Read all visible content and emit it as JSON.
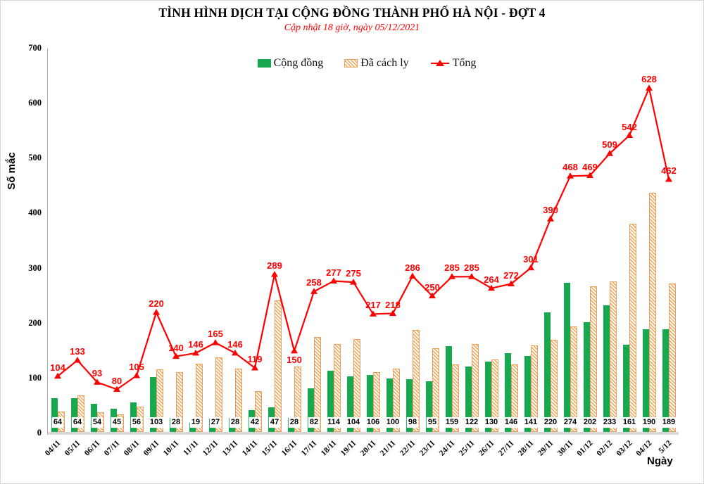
{
  "title": "TÌNH HÌNH DỊCH TẠI CỘNG ĐỒNG THÀNH PHỐ HÀ NỘI - ĐỢT 4",
  "subtitle": "Cập nhật 18 giờ, ngày 05/12/2021",
  "legend": {
    "community": "Cộng đồng",
    "quarantined": "Đã cách ly",
    "total": "Tổng"
  },
  "axis": {
    "y_label": "Số mắc",
    "x_label": "Ngày"
  },
  "colors": {
    "community": "#18a850",
    "quarantined_stripe": "#f0a256",
    "quarantined_border": "#eda156",
    "total": "#ff0000",
    "subtitle": "#ff0000",
    "axis_strip": "#d9d9d9"
  },
  "chart_data": {
    "type": "bar",
    "title": "TÌNH HÌNH DỊCH TẠI CỘNG ĐỒNG THÀNH PHỐ HÀ NỘI - ĐỢT 4",
    "subtitle": "Cập nhật 18 giờ, ngày 05/12/2021",
    "xlabel": "Ngày",
    "ylabel": "Số mắc",
    "ylim": [
      0,
      700
    ],
    "yticks": [
      0,
      100,
      200,
      300,
      400,
      500,
      600,
      700
    ],
    "grid": false,
    "legend_position": "top",
    "categories": [
      "04/11",
      "05/11",
      "06/11",
      "07/11",
      "08/11",
      "09/11",
      "10/11",
      "11/11",
      "12/11",
      "13/11",
      "14/11",
      "15/11",
      "16/11",
      "17/11",
      "18/11",
      "19/11",
      "20/11",
      "21/11",
      "22/11",
      "23/11",
      "24/11",
      "25/11",
      "26/11",
      "27/11",
      "28/11",
      "29/11",
      "30/11",
      "01/12",
      "02/12",
      "03/12",
      "04/12",
      "5/12"
    ],
    "series": [
      {
        "name": "Cộng đồng",
        "type": "bar",
        "style": "solid-green",
        "values": [
          64,
          64,
          54,
          45,
          56,
          103,
          28,
          19,
          27,
          28,
          42,
          47,
          28,
          82,
          114,
          104,
          106,
          100,
          98,
          95,
          159,
          122,
          130,
          146,
          141,
          220,
          274,
          202,
          233,
          161,
          190,
          189
        ]
      },
      {
        "name": "Đã cách ly",
        "type": "bar",
        "style": "diagonal-hatch-orange",
        "values": [
          40,
          69,
          39,
          35,
          49,
          117,
          112,
          127,
          138,
          118,
          77,
          242,
          122,
          176,
          163,
          171,
          111,
          118,
          188,
          155,
          126,
          163,
          134,
          126,
          160,
          170,
          194,
          267,
          276,
          381,
          438,
          273
        ]
      },
      {
        "name": "Tổng",
        "type": "line",
        "marker": "triangle",
        "values": [
          104,
          133,
          93,
          80,
          105,
          220,
          140,
          146,
          165,
          146,
          119,
          289,
          150,
          258,
          277,
          275,
          217,
          218,
          286,
          250,
          285,
          285,
          264,
          272,
          301,
          390,
          468,
          469,
          509,
          542,
          628,
          462
        ]
      }
    ],
    "label_below_indices": [
      12
    ]
  }
}
